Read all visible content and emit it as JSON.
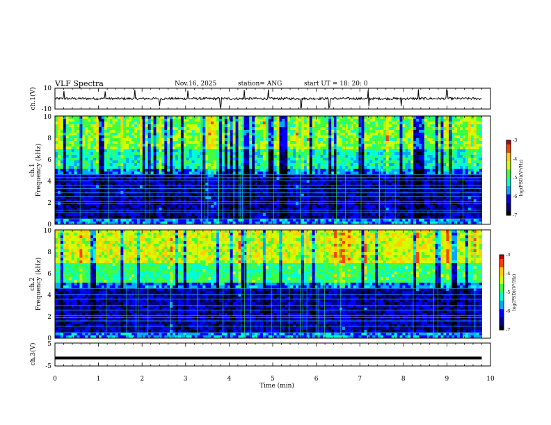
{
  "header": {
    "title": "VLF Spectra",
    "date": "Nov.16, 2025",
    "station": "station= ANG",
    "start": "start  UT =   18: 20: 0"
  },
  "colors": {
    "spectrogram_bg": "#000040",
    "colormap": [
      "#000000",
      "#00007a",
      "#0000ff",
      "#00a8ff",
      "#00ffd0",
      "#40ff40",
      "#d0ff00",
      "#ffd000",
      "#ff4000",
      "#c00000"
    ]
  },
  "chart_data": [
    {
      "type": "line",
      "name": "ch1-waveform",
      "ylabel": "ch.1(V)",
      "ylim": [
        -10,
        10
      ],
      "yticks": [
        "10",
        "-10"
      ],
      "xlim": [
        0,
        10
      ],
      "baseline": 0,
      "spikes_min": [
        0.2,
        1.15,
        1.83,
        2.4,
        3.05,
        3.8,
        4.35,
        4.9,
        5.65,
        6.3,
        7.2,
        7.95,
        8.35,
        9.0
      ]
    },
    {
      "type": "heatmap",
      "name": "ch1-spectrogram",
      "ylabel": "Frequency (kHz)",
      "channel_label": "ch.1",
      "ylim": [
        0,
        10
      ],
      "yticks": [
        "0",
        "2",
        "4",
        "6",
        "8",
        "10"
      ],
      "xlim": [
        0,
        9.8
      ],
      "colorbar": {
        "label": "log(PSD)(V²/Hz)",
        "range": [
          -7,
          -3
        ],
        "ticks": [
          "-3",
          "-4",
          "-5",
          "-6",
          "-7"
        ]
      },
      "narrowband_lines_khz": [
        0.5,
        1.1,
        1.3,
        1.9,
        2.1,
        2.6,
        2.9,
        3.3,
        3.6,
        4.0,
        4.3,
        4.6
      ]
    },
    {
      "type": "heatmap",
      "name": "ch2-spectrogram",
      "ylabel": "Frequency (kHz)",
      "channel_label": "ch.2",
      "ylim": [
        0,
        10
      ],
      "yticks": [
        "0",
        "2",
        "4",
        "6",
        "8",
        "10"
      ],
      "xlim": [
        0,
        9.8
      ],
      "colorbar": {
        "label": "log(PSD)(V²/Hz)",
        "range": [
          -7,
          -3
        ],
        "ticks": [
          "-3",
          "-4",
          "-5",
          "-6",
          "-7"
        ]
      },
      "narrowband_lines_khz": [
        0.5,
        1.1,
        1.6,
        1.9,
        2.1,
        2.6,
        3.0,
        3.6,
        4.0,
        4.6
      ]
    },
    {
      "type": "line",
      "name": "ch3-waveform",
      "ylabel": "ch.3(V)",
      "ylim": [
        -5,
        5
      ],
      "yticks": [
        "5",
        "-5"
      ],
      "xlim": [
        0,
        10
      ],
      "baseline": -1.5
    }
  ],
  "xaxis": {
    "label": "Time (min)",
    "ticks": [
      "0",
      "1",
      "2",
      "3",
      "4",
      "5",
      "6",
      "7",
      "8",
      "9",
      "10"
    ]
  }
}
